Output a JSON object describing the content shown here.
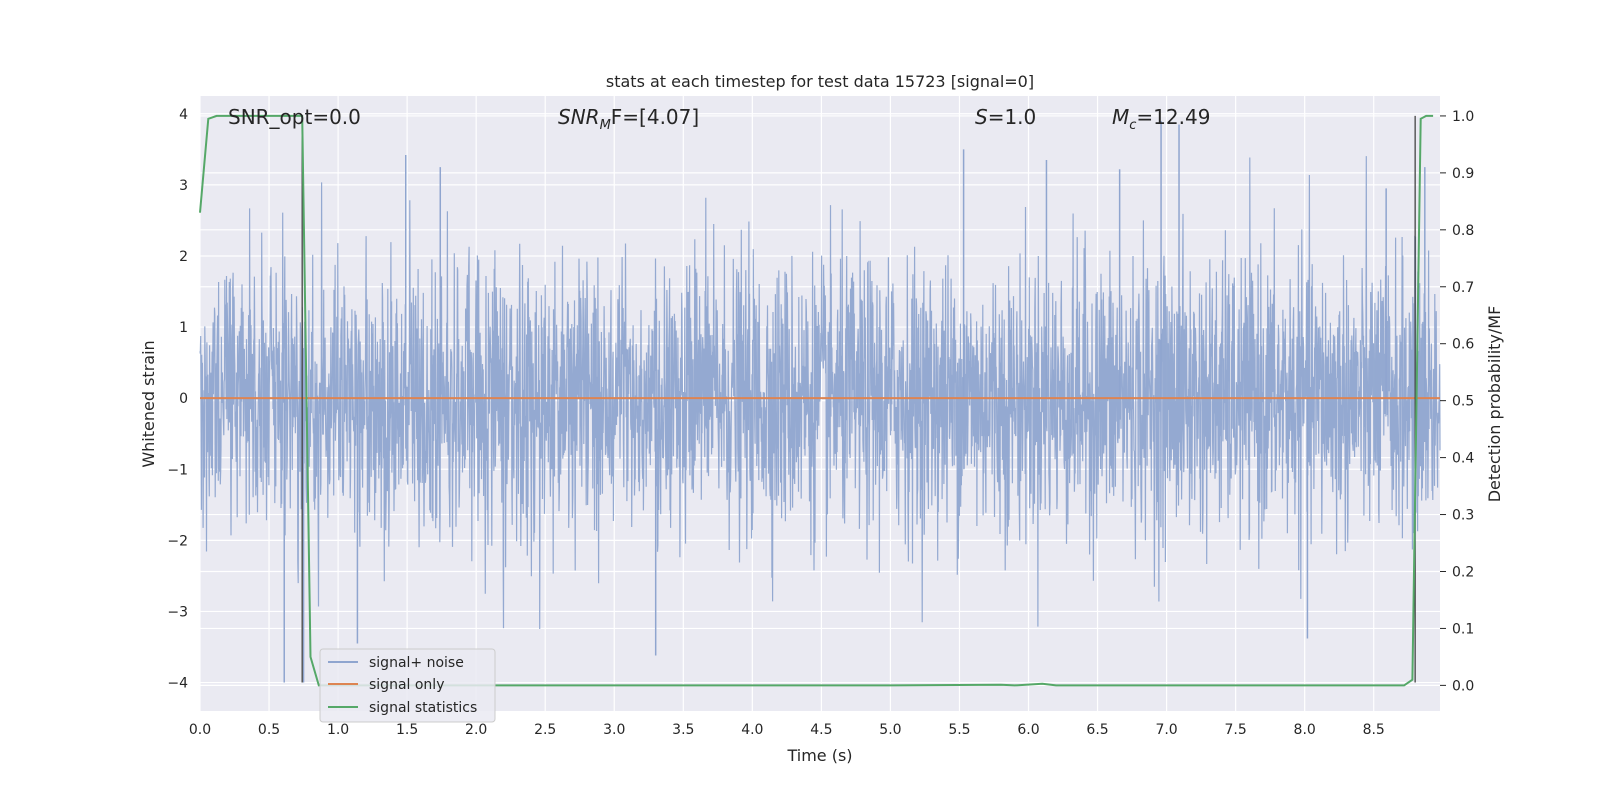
{
  "chart_data": {
    "type": "line",
    "title": "stats at each timestep for test data 15723 [signal=0]",
    "xlabel": "Time (s)",
    "ylabel": "Whitened strain",
    "ylabel_right": "Detection probability/MF",
    "xlim": [
      0,
      8.98
    ],
    "ylim": [
      -4.4,
      4.25
    ],
    "ylim_right": [
      -0.045,
      1.035
    ],
    "xticks": [
      "0.0",
      "0.5",
      "1.0",
      "1.5",
      "2.0",
      "2.5",
      "3.0",
      "3.5",
      "4.0",
      "4.5",
      "5.0",
      "5.5",
      "6.0",
      "6.5",
      "7.0",
      "7.5",
      "8.0",
      "8.5"
    ],
    "xtick_values": [
      0,
      0.5,
      1,
      1.5,
      2,
      2.5,
      3,
      3.5,
      4,
      4.5,
      5,
      5.5,
      6,
      6.5,
      7,
      7.5,
      8,
      8.5
    ],
    "yticks": [
      "−4",
      "−3",
      "−2",
      "−1",
      "0",
      "1",
      "2",
      "3",
      "4"
    ],
    "ytick_values": [
      -4,
      -3,
      -2,
      -1,
      0,
      1,
      2,
      3,
      4
    ],
    "yticks_right": [
      "0.0",
      "0.1",
      "0.2",
      "0.3",
      "0.4",
      "0.5",
      "0.6",
      "0.7",
      "0.8",
      "0.9",
      "1.0"
    ],
    "ytick_right_values": [
      0,
      0.1,
      0.2,
      0.3,
      0.4,
      0.5,
      0.6,
      0.7,
      0.8,
      0.9,
      1.0
    ],
    "grid": true,
    "legend_position": "lower-left",
    "annotations": {
      "snr_opt": "SNR_opt=0.0",
      "snr_mf_prefix": "SNR",
      "snr_mf_sub": "M",
      "snr_mf_suffix": "F=[4.07]",
      "s_var": "S",
      "s_value": "=1.0",
      "mc_var": "M",
      "mc_sub": "c",
      "mc_value": "=12.49"
    },
    "series": [
      {
        "name": "signal+ noise",
        "color": "#8fa5cf",
        "description_range": [
          -4.0,
          4.0
        ],
        "spike_points": [
          [
            0.61,
            -4.0
          ],
          [
            0.75,
            -4.0
          ],
          [
            1.14,
            -3.45
          ],
          [
            1.49,
            3.42
          ],
          [
            1.74,
            3.25
          ],
          [
            3.3,
            -3.62
          ],
          [
            5.53,
            3.5
          ],
          [
            6.13,
            3.35
          ],
          [
            6.66,
            3.22
          ],
          [
            6.96,
            3.9
          ],
          [
            7.09,
            3.85
          ],
          [
            8.02,
            -3.38
          ],
          [
            8.59,
            2.95
          ],
          [
            8.87,
            3.25
          ]
        ]
      },
      {
        "name": "signal only",
        "color": "#dd8452",
        "values_x": [
          0,
          8.98
        ],
        "values_y": [
          0,
          0
        ]
      },
      {
        "name": "signal statistics",
        "color": "#55a868",
        "axis": "right",
        "x": [
          0,
          0.06,
          0.12,
          0.2,
          0.3,
          0.45,
          0.6,
          0.72,
          0.74,
          0.8,
          0.86,
          0.92,
          1.0,
          2.0,
          3.0,
          4.0,
          5.0,
          5.8,
          5.9,
          6.1,
          6.2,
          6.4,
          7.0,
          8.0,
          8.6,
          8.72,
          8.78,
          8.84,
          8.88,
          8.93
        ],
        "y": [
          0.83,
          0.995,
          1.0,
          1.0,
          1.0,
          1.0,
          1.0,
          1.0,
          1.0,
          0.05,
          0.0,
          0.0,
          0.0,
          0.0,
          0.0,
          0.0,
          0.0,
          0.001,
          0.0,
          0.003,
          0.0,
          0.0,
          0.0,
          0.0,
          0.0,
          0.0,
          0.01,
          0.995,
          1.0,
          1.0
        ]
      }
    ],
    "vertical_markers_x": [
      0.74,
      8.8
    ],
    "marker_color": "#444444"
  }
}
